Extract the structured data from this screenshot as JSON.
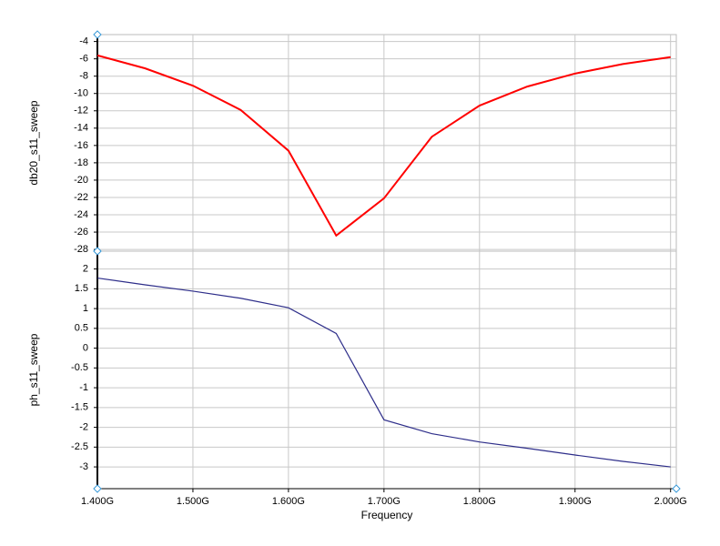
{
  "chart_data": [
    {
      "type": "line",
      "ylabel": "db20_s11_sweep",
      "x": [
        1.4,
        1.45,
        1.5,
        1.55,
        1.6,
        1.65,
        1.7,
        1.75,
        1.8,
        1.85,
        1.9,
        1.95,
        2.0
      ],
      "values": [
        -5.6,
        -7.1,
        -9.1,
        -11.9,
        -16.6,
        -26.4,
        -22.1,
        -15.0,
        -11.4,
        -9.2,
        -7.7,
        -6.6,
        -5.8
      ],
      "color": "#ff0000",
      "xlim": [
        1.4,
        2.006
      ],
      "ylim": [
        -28.2,
        -3.2
      ],
      "xticks": [
        1.4,
        1.5,
        1.6,
        1.7,
        1.8,
        1.9,
        2.0
      ],
      "yticks": [
        -4,
        -6,
        -8,
        -10,
        -12,
        -14,
        -16,
        -18,
        -20,
        -22,
        -24,
        -26,
        -28
      ],
      "grid": true
    },
    {
      "type": "line",
      "ylabel": "ph_s11_sweep",
      "xlabel": "Frequency",
      "x": [
        1.4,
        1.45,
        1.5,
        1.55,
        1.6,
        1.65,
        1.7,
        1.75,
        1.8,
        1.85,
        1.9,
        1.95,
        2.0
      ],
      "values": [
        1.77,
        1.6,
        1.44,
        1.26,
        1.02,
        0.37,
        -1.81,
        -2.16,
        -2.37,
        -2.53,
        -2.7,
        -2.86,
        -3.0
      ],
      "color": "#2e2e8a",
      "xlim": [
        1.4,
        2.006
      ],
      "ylim": [
        -3.55,
        2.45
      ],
      "xticks": [
        {
          "value": 1.4,
          "label": "1.400G"
        },
        {
          "value": 1.5,
          "label": "1.500G"
        },
        {
          "value": 1.6,
          "label": "1.600G"
        },
        {
          "value": 1.7,
          "label": "1.700G"
        },
        {
          "value": 1.8,
          "label": "1.800G"
        },
        {
          "value": 1.9,
          "label": "1.900G"
        },
        {
          "value": 2.0,
          "label": "2.000G"
        }
      ],
      "yticks": [
        2,
        1.5,
        1,
        0.5,
        0,
        -0.5,
        -1,
        -1.5,
        -2,
        -2.5,
        -3
      ],
      "grid": true
    }
  ]
}
